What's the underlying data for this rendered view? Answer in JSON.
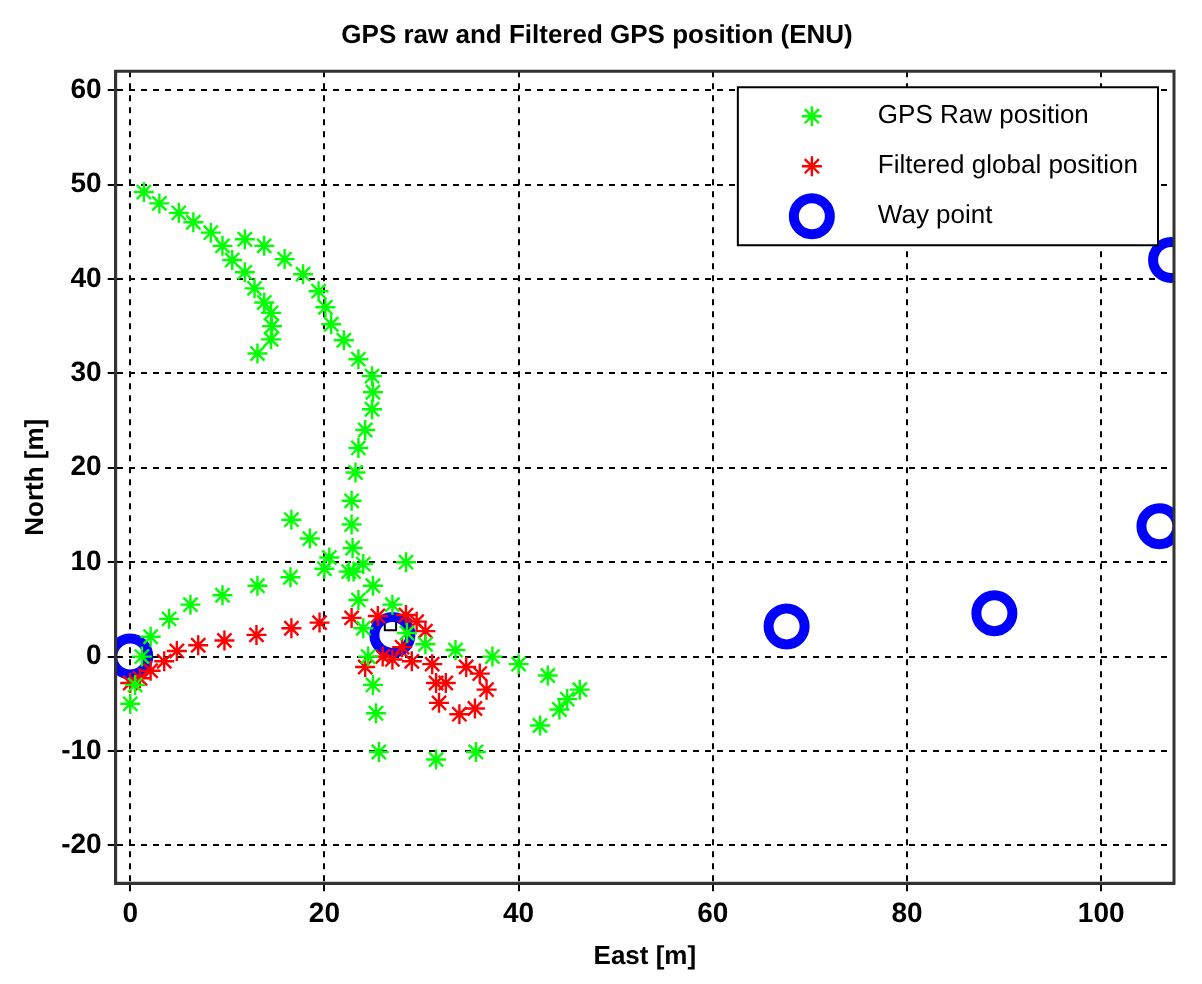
{
  "chart_data": {
    "type": "scatter",
    "title": "GPS raw and Filtered GPS position (ENU)",
    "xlabel": "East [m]",
    "ylabel": "North [m]",
    "xlim": [
      -1.5,
      107.5
    ],
    "xticks": [
      0,
      20,
      40,
      60,
      80,
      100
    ],
    "ylim": [
      -24,
      62
    ],
    "yticks": [
      -20,
      -10,
      0,
      10,
      20,
      30,
      40,
      50,
      60
    ],
    "grid": true,
    "legend": "top right",
    "series": [
      {
        "name": "GPS Raw position",
        "color": "#00ff00",
        "marker": "cross",
        "x": [
          1.4,
          3,
          5,
          6.5,
          8.3,
          9.5,
          10.5,
          11.8,
          12.8,
          13.8,
          14.5,
          14.6,
          14.5,
          13.1,
          11.8,
          13.8,
          15.9,
          17.8,
          19.4,
          20.1,
          20.7,
          22,
          23.5,
          24.9,
          25,
          24.9,
          24.2,
          23.5,
          23.2,
          22.8,
          22.8,
          22.9,
          23,
          23.5,
          24,
          24.5,
          25,
          25.3,
          25.6,
          0,
          0.5,
          1.2,
          2.1,
          4,
          6.2,
          9.5,
          13.1,
          16.5,
          20,
          24,
          28.4,
          16.6,
          18.5,
          20.5,
          22.5,
          25,
          27,
          28.5,
          30.4,
          33.5,
          37.3,
          40,
          43,
          46.3,
          45,
          44.2,
          42.2,
          31.5,
          35.6
        ],
        "values": [
          49.2,
          48,
          47,
          46,
          44.9,
          43.5,
          42,
          40.7,
          39,
          37.5,
          36.4,
          35,
          33.6,
          32.1,
          44.2,
          43.5,
          42.1,
          40.5,
          38.7,
          37,
          35.2,
          33.5,
          31.5,
          29.7,
          28,
          26.2,
          24,
          22.1,
          19.5,
          16.5,
          14,
          11.5,
          9,
          6,
          3,
          0,
          -3,
          -6,
          -10.1,
          -5,
          -3,
          0,
          2.1,
          4,
          5.5,
          6.5,
          7.5,
          8.4,
          9.3,
          9.8,
          10,
          14.5,
          12.5,
          10.5,
          9,
          7.5,
          5.5,
          2.5,
          1.3,
          0.7,
          0,
          -0.8,
          -2,
          -3.5,
          -4.5,
          -5.6,
          -7.3,
          -10.9,
          -10.1
        ]
      },
      {
        "name": "Filtered global position",
        "color": "#ff0000",
        "marker": "cross",
        "x": [
          0,
          1,
          2.1,
          3.5,
          4.8,
          7,
          9.7,
          13,
          16.6,
          19.5,
          22.8,
          25.5,
          28.4,
          29.5,
          30.4,
          28,
          26,
          24.2,
          27,
          29,
          31.1,
          31.5,
          31.8,
          33.9,
          35.5,
          36.7,
          36,
          34.6,
          32.5
        ],
        "values": [
          -2.8,
          -2.3,
          -1.5,
          -0.5,
          0.6,
          1.2,
          1.7,
          2.3,
          3,
          3.6,
          4.1,
          4.3,
          4.4,
          3.7,
          2.7,
          1,
          0,
          -1.1,
          -0.3,
          -0.5,
          -0.8,
          -2.8,
          -4.9,
          -6.1,
          -5.5,
          -3.5,
          -1.8,
          -1.1,
          -2.8
        ]
      },
      {
        "name": "Way point",
        "color": "#0000ff",
        "marker": "circle",
        "x": [
          0,
          27,
          67.6,
          89,
          106,
          107.2
        ],
        "values": [
          0,
          2.3,
          3.2,
          4.6,
          13.8,
          42
        ]
      },
      {
        "color": "#000000",
        "marker": "square",
        "x": [
          26.8
        ],
        "values": [
          3.4
        ]
      }
    ]
  }
}
